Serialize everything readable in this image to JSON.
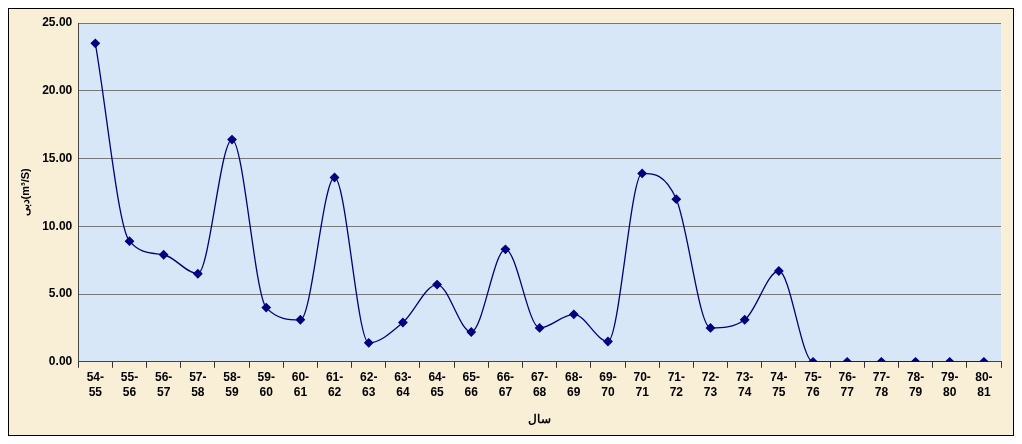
{
  "chart_data": {
    "type": "line",
    "xlabel": "سال",
    "ylabel": "دبی(m³/S)",
    "categories": [
      "54-55",
      "55-56",
      "56-57",
      "57-58",
      "58-59",
      "59-60",
      "60-61",
      "61-62",
      "62-63",
      "63-64",
      "64-65",
      "65-66",
      "66-67",
      "67-68",
      "68-69",
      "69-70",
      "70-71",
      "71-72",
      "72-73",
      "73-74",
      "74-75",
      "75-76",
      "76-77",
      "77-78",
      "78-79",
      "79-80",
      "80-81"
    ],
    "series": [
      {
        "color": "#000080",
        "values": [
          23.5,
          8.9,
          7.9,
          6.5,
          16.4,
          4.0,
          3.1,
          13.6,
          1.4,
          2.9,
          5.7,
          2.2,
          8.3,
          2.5,
          3.5,
          1.5,
          13.9,
          12.0,
          2.5,
          3.1,
          6.7,
          0,
          0,
          0,
          0,
          0,
          0
        ]
      }
    ],
    "ylim": [
      0,
      25
    ],
    "yticks": [
      {
        "value": 0,
        "label": "0.00"
      },
      {
        "value": 5,
        "label": "5.00"
      },
      {
        "value": 10,
        "label": "10.00"
      },
      {
        "value": 15,
        "label": "15.00"
      },
      {
        "value": 20,
        "label": "20.00"
      },
      {
        "value": 25,
        "label": "25.00"
      }
    ],
    "grid": "y",
    "marker": "diamond",
    "line_style": "solid",
    "legend": false
  }
}
